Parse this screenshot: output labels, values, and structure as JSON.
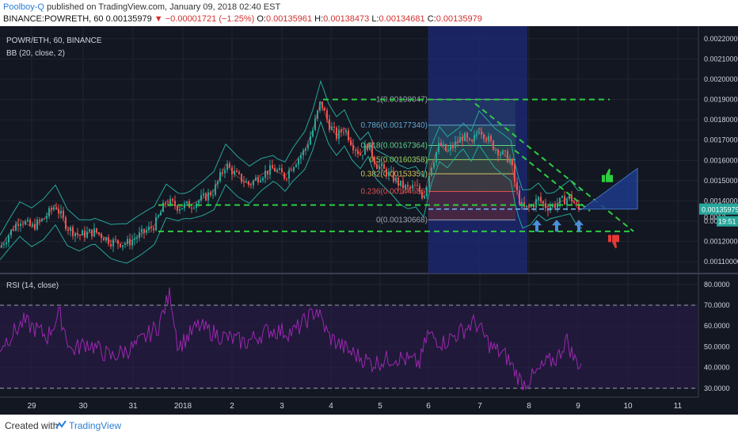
{
  "header": {
    "author": "Poolboy-Q",
    "published": "published on TradingView.com, January 09, 2018 02:40 EST",
    "symbol": "BINANCE:POWRETH, 60",
    "last": "0.00135979",
    "change_arrow": "▼",
    "change": "−0.00001721 (−1.25%)",
    "o_label": "O:",
    "o_value": "0.00135961",
    "h_label": "H:",
    "h_value": "0.00138473",
    "l_label": "L:",
    "l_value": "0.00134681",
    "c_label": "C:",
    "c_value": "0.00135979"
  },
  "footer": {
    "created_with": "Created with",
    "brand": "TradingView",
    "logo_icon": "tradingview-logo-icon"
  },
  "colors": {
    "background": "#131722",
    "candle_up": "#26a69a",
    "candle_down": "#ef5350",
    "bollinger": "#26a69a",
    "bb_basis": "#ef5350",
    "rsi_line": "#9c27b0",
    "dashed_green": "#2ecc40",
    "fib_box": "#1e2a78",
    "triangle": "#1e3a8a",
    "arrow": "#4a90d9"
  },
  "chart_data": {
    "type": "candlestick",
    "price_pane": {
      "legend": [
        "POWR/ETH, 60, BINANCE",
        "BB (20, close, 2)"
      ],
      "y_ticks": [
        "0.00220000",
        "0.00210000",
        "0.00200000",
        "0.00190000",
        "0.00180000",
        "0.00170000",
        "0.00160000",
        "0.00150000",
        "0.00140000",
        "0.00130000",
        "0.00120000",
        "0.00110000"
      ],
      "ylim": [
        0.00105,
        0.00225
      ],
      "last_price_tag": "0.00135979",
      "countdown_tag": "19:51",
      "partial_tick": "0.0013",
      "fib_levels": [
        {
          "label": "1(0.00190047)",
          "value": 0.00190047
        },
        {
          "label": "0.786(0.00177340)",
          "value": 0.0017734
        },
        {
          "label": "0.618(0.00167364)",
          "value": 0.00167364
        },
        {
          "label": "0.5(0.00160358)",
          "value": 0.00160358
        },
        {
          "label": "0.382(0.00153351)",
          "value": 0.00153351
        },
        {
          "label": "0.236(0.00144686)",
          "value": 0.00144686
        },
        {
          "label": "0(0.00130668)",
          "value": 0.00130668
        }
      ],
      "support_lines": [
        0.0019,
        0.00138,
        0.00125
      ],
      "close_profile": [
        [
          0,
          0.00117
        ],
        [
          12,
          0.00124
        ],
        [
          25,
          0.00131
        ],
        [
          40,
          0.00127
        ],
        [
          55,
          0.00131
        ],
        [
          70,
          0.00138
        ],
        [
          85,
          0.00127
        ],
        [
          100,
          0.00123
        ],
        [
          120,
          0.00125
        ],
        [
          140,
          0.0012
        ],
        [
          160,
          0.00119
        ],
        [
          180,
          0.00124
        ],
        [
          195,
          0.00128
        ],
        [
          210,
          0.0014
        ],
        [
          225,
          0.00137
        ],
        [
          240,
          0.00138
        ],
        [
          255,
          0.00141
        ],
        [
          270,
          0.00145
        ],
        [
          285,
          0.00158
        ],
        [
          300,
          0.00152
        ],
        [
          315,
          0.00148
        ],
        [
          330,
          0.00153
        ],
        [
          345,
          0.00156
        ],
        [
          360,
          0.00152
        ],
        [
          370,
          0.00158
        ],
        [
          385,
          0.00165
        ],
        [
          395,
          0.00175
        ],
        [
          405,
          0.00189
        ],
        [
          415,
          0.00178
        ],
        [
          425,
          0.00172
        ],
        [
          435,
          0.00176
        ],
        [
          445,
          0.00168
        ],
        [
          455,
          0.00163
        ],
        [
          465,
          0.00168
        ],
        [
          475,
          0.00158
        ],
        [
          485,
          0.00155
        ],
        [
          495,
          0.00152
        ],
        [
          505,
          0.00148
        ],
        [
          515,
          0.00146
        ],
        [
          525,
          0.00147
        ],
        [
          535,
          0.00142
        ],
        [
          545,
          0.00158
        ],
        [
          555,
          0.00168
        ],
        [
          565,
          0.00164
        ],
        [
          575,
          0.00168
        ],
        [
          585,
          0.00172
        ],
        [
          595,
          0.00167
        ],
        [
          605,
          0.00176
        ],
        [
          615,
          0.00171
        ],
        [
          625,
          0.00166
        ],
        [
          635,
          0.00163
        ],
        [
          645,
          0.0016
        ],
        [
          652,
          0.00145
        ],
        [
          660,
          0.00136
        ],
        [
          670,
          0.00137
        ],
        [
          680,
          0.00141
        ],
        [
          690,
          0.00137
        ],
        [
          700,
          0.00138
        ],
        [
          710,
          0.0014
        ],
        [
          720,
          0.00142
        ],
        [
          730,
          0.00136
        ]
      ]
    },
    "rsi_pane": {
      "legend": "RSI (14, close)",
      "y_ticks": [
        "80.0000",
        "70.0000",
        "60.0000",
        "50.0000",
        "40.0000",
        "30.0000"
      ],
      "ylim": [
        28,
        83
      ],
      "bands": [
        70,
        30
      ],
      "profile": [
        [
          0,
          50
        ],
        [
          30,
          62
        ],
        [
          60,
          55
        ],
        [
          75,
          66
        ],
        [
          90,
          48
        ],
        [
          110,
          52
        ],
        [
          140,
          45
        ],
        [
          170,
          50
        ],
        [
          200,
          60
        ],
        [
          215,
          76
        ],
        [
          225,
          50
        ],
        [
          250,
          60
        ],
        [
          280,
          55
        ],
        [
          310,
          52
        ],
        [
          340,
          58
        ],
        [
          370,
          57
        ],
        [
          385,
          62
        ],
        [
          400,
          68
        ],
        [
          415,
          55
        ],
        [
          440,
          48
        ],
        [
          470,
          42
        ],
        [
          500,
          45
        ],
        [
          530,
          42
        ],
        [
          540,
          56
        ],
        [
          560,
          52
        ],
        [
          585,
          58
        ],
        [
          600,
          62
        ],
        [
          620,
          50
        ],
        [
          640,
          45
        ],
        [
          660,
          32
        ],
        [
          675,
          36
        ],
        [
          690,
          42
        ],
        [
          705,
          45
        ],
        [
          715,
          54
        ],
        [
          725,
          44
        ],
        [
          735,
          41
        ]
      ]
    },
    "x_ticks": [
      {
        "label": "29",
        "x": 40
      },
      {
        "label": "30",
        "x": 105
      },
      {
        "label": "31",
        "x": 168
      },
      {
        "label": "2018",
        "x": 231
      },
      {
        "label": "2",
        "x": 293
      },
      {
        "label": "3",
        "x": 356
      },
      {
        "label": "4",
        "x": 418
      },
      {
        "label": "5",
        "x": 480
      },
      {
        "label": "6",
        "x": 541
      },
      {
        "label": "7",
        "x": 606
      },
      {
        "label": "8",
        "x": 668
      },
      {
        "label": "9",
        "x": 730
      },
      {
        "label": "10",
        "x": 793
      },
      {
        "label": "11",
        "x": 856
      }
    ]
  }
}
